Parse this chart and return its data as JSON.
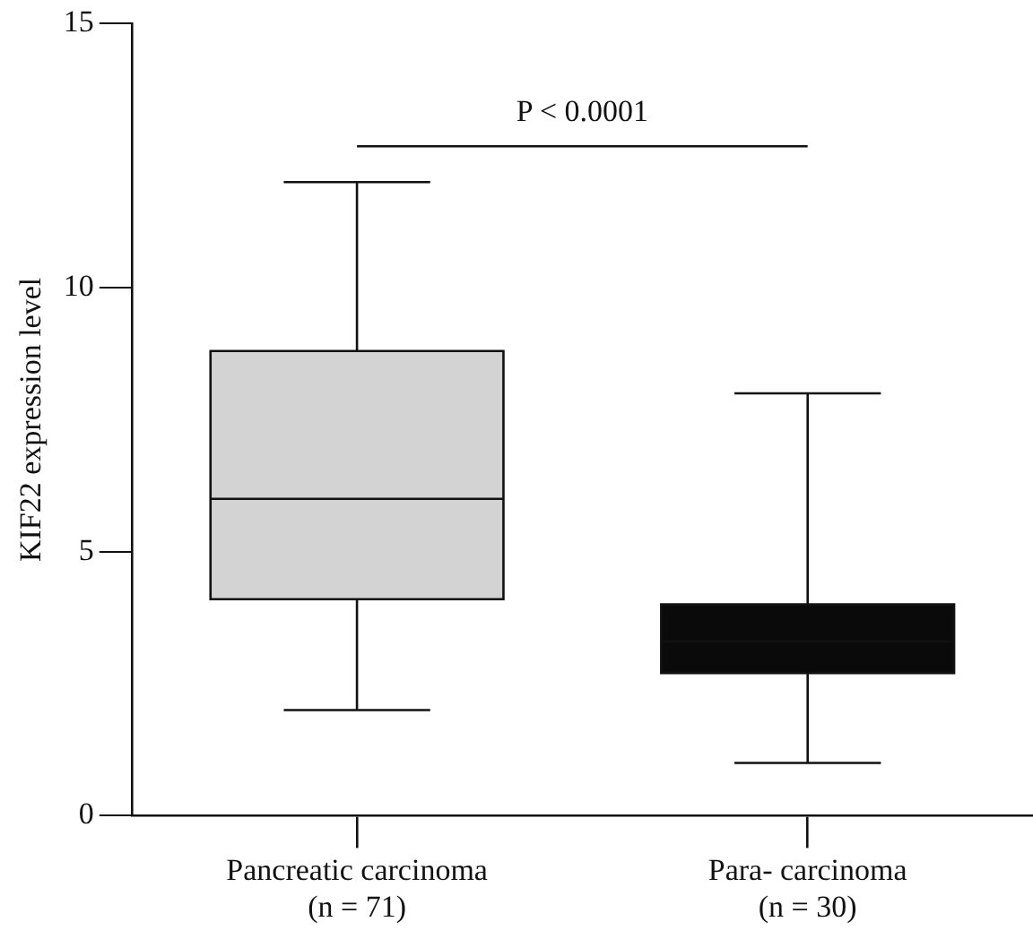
{
  "chart_data": {
    "type": "box",
    "ylabel": "KIF22 expression level",
    "categories": [
      "Pancreatic carcinoma (n = 71)",
      "Para- carcinoma (n = 30)"
    ],
    "colors": [
      "#d3d3d3",
      "#0a0a0a"
    ],
    "boxes": [
      {
        "low": 2,
        "q1": 4.1,
        "median": 6,
        "q3": 8.8,
        "high": 12
      },
      {
        "low": 1,
        "q1": 2.7,
        "median": 3.3,
        "q3": 4,
        "high": 8
      }
    ],
    "ylim": [
      0,
      15
    ],
    "yticks": [
      0,
      5,
      10,
      15
    ],
    "grid": false,
    "legend": false,
    "annotations": [
      "P < 0.0001"
    ]
  }
}
